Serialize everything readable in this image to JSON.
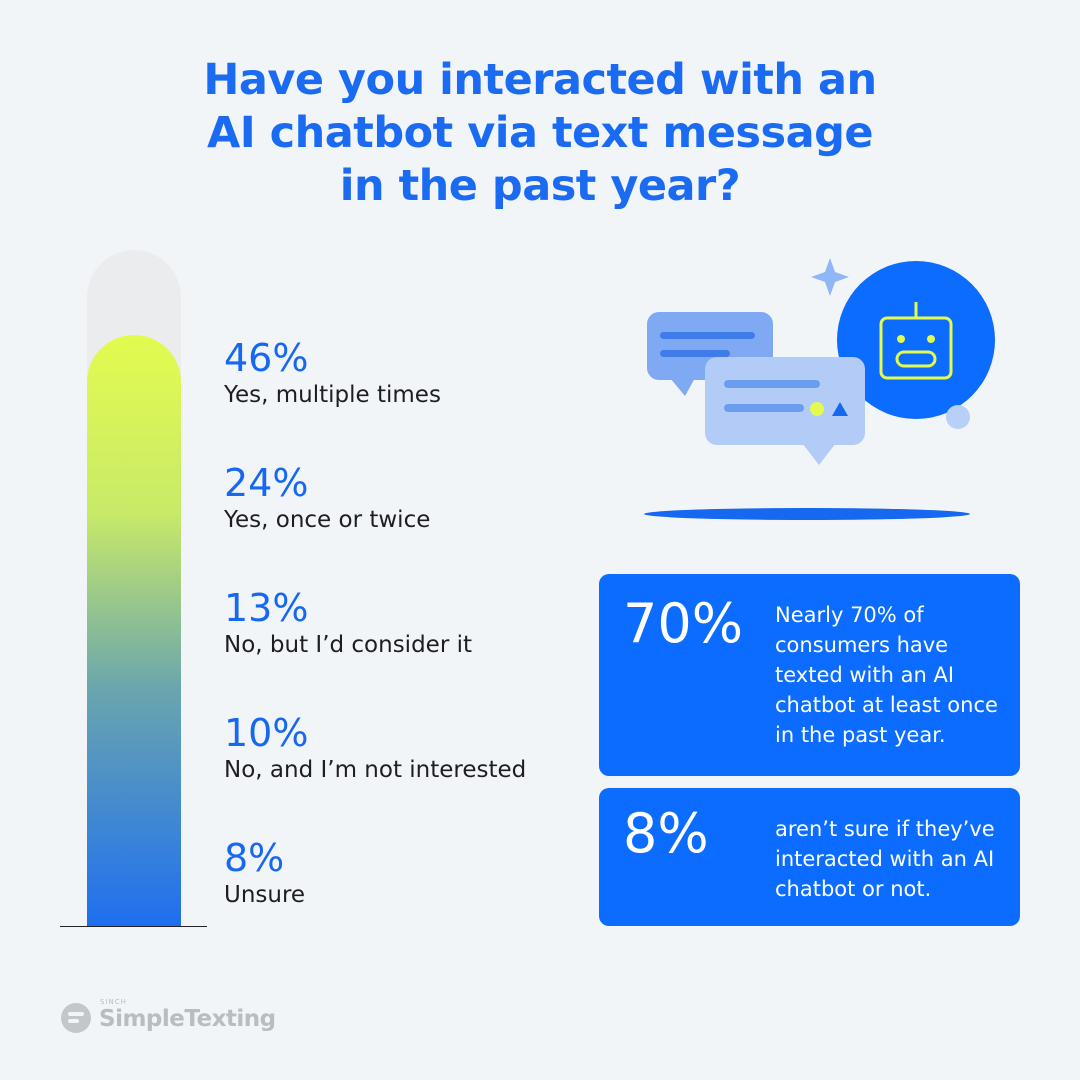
{
  "title_lines": [
    "Have you interacted with an",
    "AI chatbot via text message",
    "in the past year?"
  ],
  "responses": [
    {
      "percent": "46%",
      "label": "Yes, multiple times"
    },
    {
      "percent": "24%",
      "label": "Yes, once or twice"
    },
    {
      "percent": "13%",
      "label": "No, but I’d consider it"
    },
    {
      "percent": "10%",
      "label": "No, and I’m not interested"
    },
    {
      "percent": "8%",
      "label": "Unsure"
    }
  ],
  "callouts": [
    {
      "figure": "70%",
      "text": "Nearly 70% of consumers have texted with an AI chatbot at least once in the past year."
    },
    {
      "figure": "8%",
      "text": "aren’t sure if they’ve interacted with an AI chatbot or not."
    }
  ],
  "brand": {
    "super": "SINCH",
    "name": "SimpleTexting"
  }
}
